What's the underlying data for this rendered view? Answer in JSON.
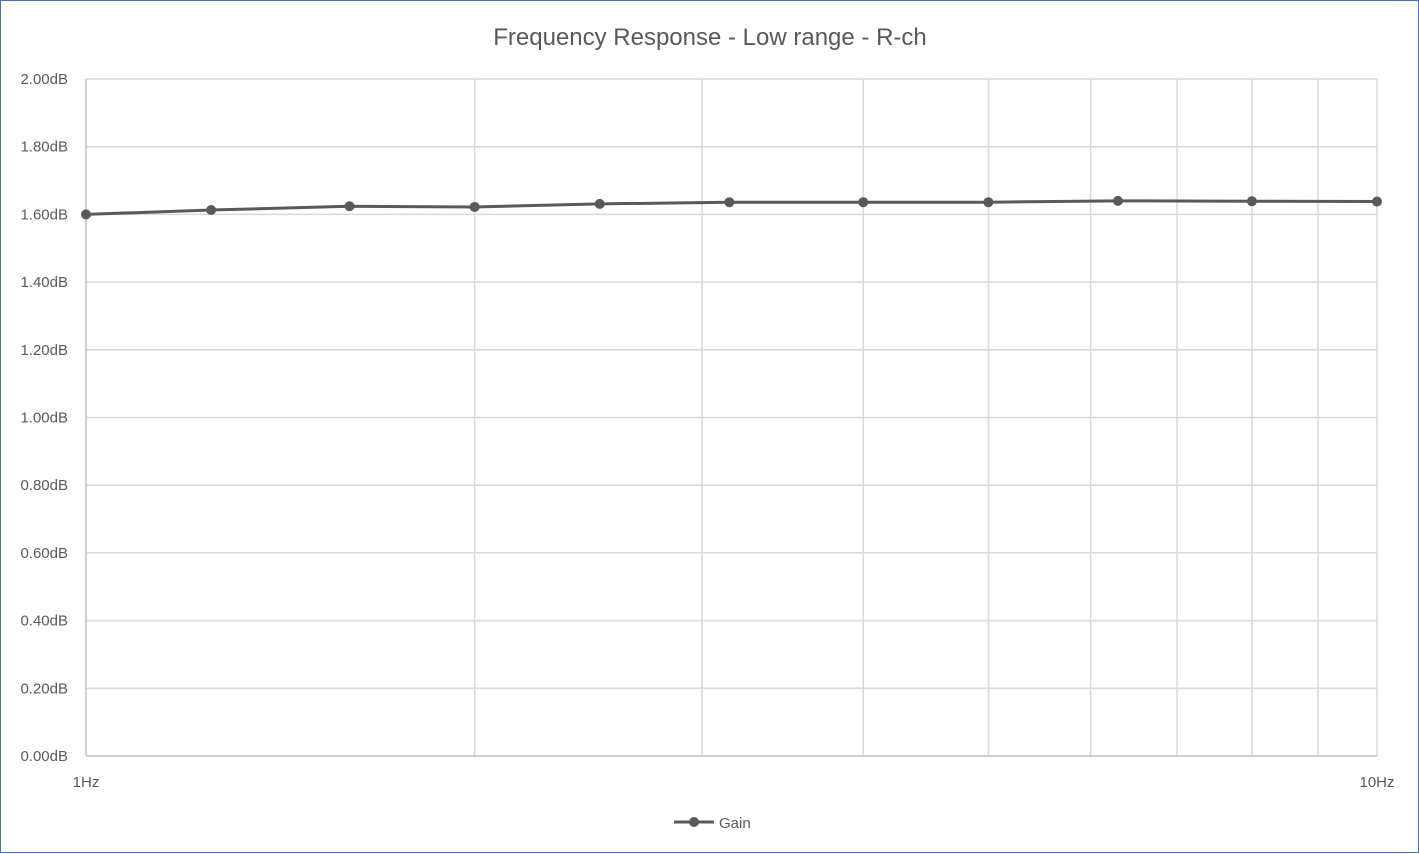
{
  "chart_data": {
    "type": "line",
    "title": "Frequency Response - Low range - R-ch",
    "xscale": "log",
    "xlim": [
      1,
      10
    ],
    "ylim": [
      0,
      2
    ],
    "grid": true,
    "legend_position": "bottom",
    "x_ticks": [
      {
        "value": 1,
        "label": "1Hz"
      },
      {
        "value": 10,
        "label": "10Hz"
      }
    ],
    "y_ticks": [
      {
        "value": 0.0,
        "label": "0.00dB"
      },
      {
        "value": 0.2,
        "label": "0.20dB"
      },
      {
        "value": 0.4,
        "label": "0.40dB"
      },
      {
        "value": 0.6,
        "label": "0.60dB"
      },
      {
        "value": 0.8,
        "label": "0.80dB"
      },
      {
        "value": 1.0,
        "label": "1.00dB"
      },
      {
        "value": 1.2,
        "label": "1.20dB"
      },
      {
        "value": 1.4,
        "label": "1.40dB"
      },
      {
        "value": 1.6,
        "label": "1.60dB"
      },
      {
        "value": 1.8,
        "label": "1.80dB"
      },
      {
        "value": 2.0,
        "label": "2.00dB"
      }
    ],
    "series": [
      {
        "name": "Gain",
        "color": "#595959",
        "x": [
          1.0,
          1.25,
          1.6,
          2.0,
          2.5,
          3.15,
          4.0,
          5.0,
          6.3,
          8.0,
          10.0
        ],
        "values": [
          1.6,
          1.613,
          1.624,
          1.622,
          1.631,
          1.636,
          1.636,
          1.636,
          1.64,
          1.639,
          1.638
        ]
      }
    ]
  },
  "colors": {
    "frame_border": "#4472c4",
    "grid": "#d9d9d9",
    "axis": "#bfbfbf",
    "text": "#595959",
    "series": "#595959"
  }
}
